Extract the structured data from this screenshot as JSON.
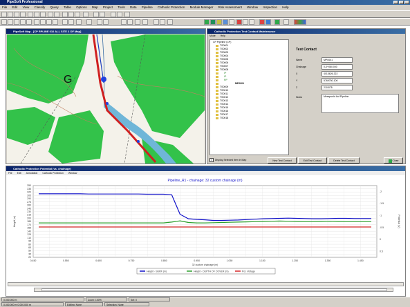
{
  "app": {
    "title": "PipeSoft Professional",
    "menus": [
      "File",
      "Edit",
      "View",
      "Classify",
      "Query",
      "Table",
      "Options",
      "Map",
      "Project",
      "Tools",
      "Data",
      "Pipeline",
      "Cathodic Protection",
      "Module Manager",
      "Risk Assessment",
      "Window",
      "Inspection",
      "Help"
    ]
  },
  "map_window": {
    "title": "PipeSoft Map - [CP RPLINE 010 ALL SITE 2 OF Map]",
    "letter_label": "G"
  },
  "tree_window": {
    "title": "Cathodic Protection Test Contact Maintenance",
    "menus": [
      "Mode",
      "Help"
    ],
    "items": [
      "CP Pipeline (CP)",
      "TS0001",
      "TS0002",
      "TS0003",
      "TS0004",
      "TS0005",
      "TS0006",
      "TS0007",
      "TS0008",
      "IP",
      "IP",
      "RP",
      "MP0001",
      "TS0009",
      "TS0010",
      "TS0011",
      "TS0012",
      "TS0013",
      "TS0014",
      "TS0015",
      "TS0016",
      "TS0017",
      "TS0018"
    ],
    "checkbox_label": "Display Selected Item in Map"
  },
  "test_contact": {
    "heading": "Test Contact",
    "fields": [
      {
        "label": "Name",
        "value": "MP0001"
      },
      {
        "label": "Chainage",
        "value": "0-0+080.000"
      },
      {
        "label": "X",
        "value": "4013626.322"
      },
      {
        "label": "Y",
        "value": "5769750.100"
      },
      {
        "label": "Z",
        "value": "210.875"
      }
    ],
    "notes_label": "Notes",
    "notes_value": "Messpunkt Auf Pipeline",
    "buttons": [
      "New Test Contact",
      "Edit Test Contact",
      "Delete Test Contact",
      "Close"
    ]
  },
  "chart_window": {
    "title": "Cathodic Protection Potential (vs. chainage)",
    "menus": [
      "File",
      "Edit",
      "Annotation",
      "Cathodic Protection",
      "Window"
    ],
    "chart_title": "Pipeline_R1 - chainage: 32 custom chainage (m)"
  },
  "chart_data": {
    "type": "line",
    "xlabel": "32 custom chainage (m)",
    "ylabel": "Height (m)",
    "y2label": "Potential (V)",
    "x": [
      0.0,
      0.05,
      0.1,
      0.15,
      0.2,
      0.25,
      0.3,
      0.35,
      0.4,
      0.45,
      0.5,
      0.55,
      0.6,
      0.65,
      0.7,
      0.75,
      0.8,
      0.85,
      0.9,
      0.95,
      1.0,
      1.05,
      1.1,
      1.15,
      1.2,
      1.25,
      1.3,
      1.35,
      1.4,
      1.45,
      1.5,
      1.55,
      1.6,
      1.65,
      1.7,
      1.75,
      1.8,
      1.85,
      1.9,
      1.95,
      2.0
    ],
    "x_ticks": [
      "0.450",
      "0.500",
      "0.550",
      "0.600",
      "0.650",
      "0.700",
      "0.750",
      "0.800",
      "0.850",
      "0.900",
      "0.950",
      "1.000",
      "1.050",
      "1.100",
      "1.150",
      "1.200",
      "1.250",
      "1.300",
      "1.350",
      "1.400",
      "1.450",
      "1.500"
    ],
    "ylim": [
      0,
      350
    ],
    "y_ticks": [
      "350",
      "335",
      "320",
      "305",
      "290",
      "275",
      "260",
      "245",
      "230",
      "215",
      "200",
      "185",
      "170",
      "155",
      "140",
      "125",
      "110",
      "95",
      "80",
      "65",
      "50",
      "35",
      "20"
    ],
    "y2_ticks": [
      "-2",
      "-1.5",
      "-1",
      "-0.5",
      "0",
      "0.5"
    ],
    "series": [
      {
        "name": "Height - SURF (m)",
        "color": "#1010c8",
        "values": [
          310,
          310,
          310,
          310,
          310,
          310,
          309,
          309,
          309,
          309,
          309,
          309,
          309,
          308,
          308,
          308,
          305,
          210,
          188,
          185,
          183,
          180,
          180,
          181,
          182,
          184,
          186,
          188,
          189,
          190,
          191,
          190,
          189,
          188,
          188,
          189,
          190,
          190,
          189,
          189,
          189
        ]
      },
      {
        "name": "Height - DEPTH OF COVER (m)",
        "color": "#2ca02c",
        "values": [
          168,
          168,
          168,
          168,
          168,
          168,
          168,
          168,
          168,
          168,
          168,
          168,
          168,
          168,
          168,
          168,
          172,
          178,
          170,
          168,
          168,
          169,
          170,
          171,
          172,
          173,
          174,
          175,
          176,
          177,
          176,
          175,
          174,
          174,
          175,
          176,
          175,
          174,
          174,
          174,
          174
        ]
      },
      {
        "name": "Pot. Voltage",
        "color": "#d62728",
        "values": [
          148,
          148,
          148,
          148,
          148,
          148,
          148,
          148,
          148,
          148,
          148,
          148,
          148,
          148,
          148,
          148,
          148,
          148,
          148,
          148,
          148,
          148,
          148,
          148,
          148,
          148,
          148,
          148,
          148,
          148,
          148,
          148,
          148,
          148,
          148,
          148,
          148,
          148,
          148,
          148,
          148
        ]
      }
    ],
    "legend_placement": "bottom-center"
  },
  "status_bar": {
    "cells": [
      "0.000,000 m",
      "0.000,000 m",
      "Zoom: 100%",
      "Sel: 0"
    ],
    "bottom": [
      "0.000,000 m  0.000,000 m",
      "Editing: None",
      "Selection: None"
    ]
  }
}
